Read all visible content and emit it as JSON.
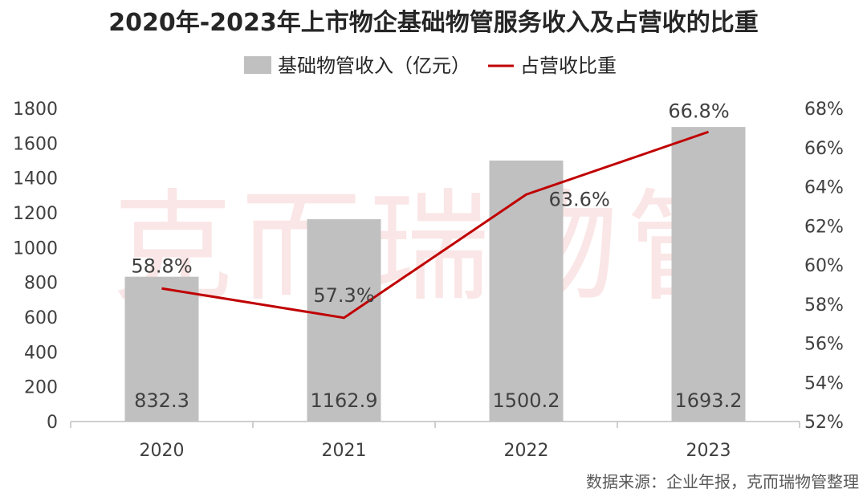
{
  "chart_data": {
    "type": "bar",
    "title": "2020年-2023年上市物企基础物管服务收入及占营收的比重",
    "categories": [
      "2020",
      "2021",
      "2022",
      "2023"
    ],
    "series": [
      {
        "name": "基础物管收入（亿元）",
        "type": "bar",
        "axis": "left",
        "values": [
          832.3,
          1162.9,
          1500.2,
          1693.2
        ],
        "labels": [
          "832.3",
          "1162.9",
          "1500.2",
          "1693.2"
        ],
        "color": "#c0c0c0"
      },
      {
        "name": "占营收比重",
        "type": "line",
        "axis": "right",
        "values": [
          58.8,
          57.3,
          63.6,
          66.8
        ],
        "labels": [
          "58.8%",
          "57.3%",
          "63.6%",
          "66.8%"
        ],
        "color": "#c00000"
      }
    ],
    "y_left": {
      "min": 0,
      "max": 1800,
      "ticks": [
        "0",
        "200",
        "400",
        "600",
        "800",
        "1000",
        "1200",
        "1400",
        "1600",
        "1800"
      ]
    },
    "y_right": {
      "min": 52,
      "max": 68,
      "ticks": [
        "52%",
        "54%",
        "56%",
        "58%",
        "60%",
        "62%",
        "64%",
        "66%",
        "68%"
      ]
    },
    "legend": "top-center",
    "grid": false,
    "watermark": "克而瑞物管",
    "source": "数据来源：企业年报，克而瑞物管整理"
  }
}
